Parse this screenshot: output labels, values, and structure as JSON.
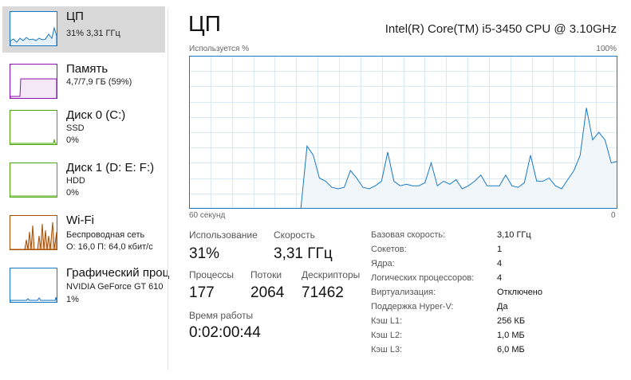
{
  "sidebar": {
    "items": [
      {
        "name": "ЦП",
        "line1": "31% 3,31 ГГц",
        "line2": "",
        "color": "#1a78c2"
      },
      {
        "name": "Память",
        "line1": "4,7/7,9 ГБ (59%)",
        "line2": "",
        "color": "#8b12ae"
      },
      {
        "name": "Диск 0 (C:)",
        "line1": "SSD",
        "line2": "0%",
        "color": "#4da60c"
      },
      {
        "name": "Диск 1 (D: E: F:)",
        "line1": "HDD",
        "line2": "0%",
        "color": "#4da60c"
      },
      {
        "name": "Wi-Fi",
        "line1": "Беспроводная сеть",
        "line2": "О: 16,0 П: 64,0 кбит/с",
        "color": "#a74f01"
      },
      {
        "name": "Графический проц",
        "line1": "NVIDIA GeForce GT 610",
        "line2": "1%",
        "color": "#1a78c2"
      }
    ]
  },
  "main": {
    "title": "ЦП",
    "cpu_name": "Intel(R) Core(TM) i5-3450 CPU @ 3.10GHz",
    "graph_top_left": "Используется %",
    "graph_top_right": "100%",
    "graph_bottom_left": "60 секунд",
    "graph_bottom_right": "0"
  },
  "stats": {
    "usage_label": "Использование",
    "usage_value": "31%",
    "speed_label": "Скорость",
    "speed_value": "3,31 ГГц",
    "processes_label": "Процессы",
    "processes_value": "177",
    "threads_label": "Потоки",
    "threads_value": "2064",
    "handles_label": "Дескрипторы",
    "handles_value": "71462",
    "uptime_label": "Время работы",
    "uptime_value": "0:02:00:44"
  },
  "details": [
    {
      "label": "Базовая скорость:",
      "value": "3,10 ГГц"
    },
    {
      "label": "Сокетов:",
      "value": "1"
    },
    {
      "label": "Ядра:",
      "value": "4"
    },
    {
      "label": "Логических процессоров:",
      "value": "4"
    },
    {
      "label": "Виртуализация:",
      "value": "Отключено"
    },
    {
      "label": "Поддержка Hyper-V:",
      "value": "Да"
    },
    {
      "label": "Кэш L1:",
      "value": "256 КБ"
    },
    {
      "label": "Кэш L2:",
      "value": "1,0 МБ"
    },
    {
      "label": "Кэш L3:",
      "value": "6,0 МБ"
    }
  ],
  "colors": {
    "cpu_line": "#1a78c2",
    "cpu_fill": "#f1f6fa",
    "grid": "#d9eaf4",
    "border": "#1a78c2"
  },
  "cpu_history_percent": [
    0,
    0,
    0,
    0,
    0,
    0,
    0,
    0,
    0,
    0,
    0,
    0,
    0,
    0,
    0,
    0,
    0,
    0,
    0,
    41,
    35,
    20,
    18,
    14,
    13,
    14,
    25,
    20,
    14,
    13,
    15,
    18,
    37,
    18,
    15,
    16,
    15,
    15,
    17,
    30,
    15,
    18,
    16,
    19,
    13,
    15,
    18,
    22,
    15,
    15,
    15,
    22,
    15,
    14,
    17,
    35,
    18,
    18,
    20,
    15,
    13,
    19,
    25,
    35,
    66,
    45,
    50,
    45,
    30,
    31
  ]
}
